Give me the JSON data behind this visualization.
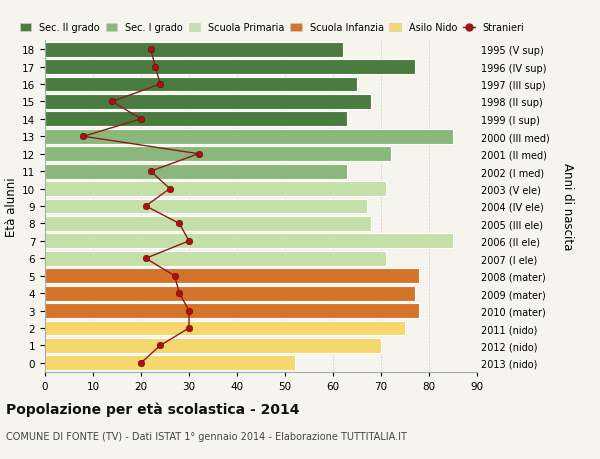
{
  "ages": [
    18,
    17,
    16,
    15,
    14,
    13,
    12,
    11,
    10,
    9,
    8,
    7,
    6,
    5,
    4,
    3,
    2,
    1,
    0
  ],
  "right_labels": [
    "1995 (V sup)",
    "1996 (IV sup)",
    "1997 (III sup)",
    "1998 (II sup)",
    "1999 (I sup)",
    "2000 (III med)",
    "2001 (II med)",
    "2002 (I med)",
    "2003 (V ele)",
    "2004 (IV ele)",
    "2005 (III ele)",
    "2006 (II ele)",
    "2007 (I ele)",
    "2008 (mater)",
    "2009 (mater)",
    "2010 (mater)",
    "2011 (nido)",
    "2012 (nido)",
    "2013 (nido)"
  ],
  "bar_values": [
    62,
    77,
    65,
    68,
    63,
    85,
    72,
    63,
    71,
    67,
    68,
    85,
    71,
    78,
    77,
    78,
    75,
    70,
    52
  ],
  "bar_colors": [
    "#4a7c3f",
    "#4a7c3f",
    "#4a7c3f",
    "#4a7c3f",
    "#4a7c3f",
    "#8ab87a",
    "#8ab87a",
    "#8ab87a",
    "#c5dfa8",
    "#c5dfa8",
    "#c5dfa8",
    "#c5dfa8",
    "#c5dfa8",
    "#d4742a",
    "#d4742a",
    "#d4742a",
    "#f5d76e",
    "#f5d76e",
    "#f5d76e"
  ],
  "stranieri_values": [
    22,
    23,
    24,
    14,
    20,
    8,
    32,
    22,
    26,
    21,
    28,
    30,
    21,
    27,
    28,
    30,
    30,
    24,
    20
  ],
  "legend_labels": [
    "Sec. II grado",
    "Sec. I grado",
    "Scuola Primaria",
    "Scuola Infanzia",
    "Asilo Nido",
    "Stranieri"
  ],
  "legend_colors": [
    "#4a7c3f",
    "#8ab87a",
    "#c5dfa8",
    "#d4742a",
    "#f5d76e",
    "#aa1111"
  ],
  "ylabel_left": "Età alunni",
  "ylabel_right": "Anni di nascita",
  "title": "Popolazione per età scolastica - 2014",
  "subtitle": "COMUNE DI FONTE (TV) - Dati ISTAT 1° gennaio 2014 - Elaborazione TUTTITALIA.IT",
  "xlim": [
    0,
    90
  ],
  "background_color": "#f5f5ee",
  "bar_edge_color": "#ffffff",
  "grid_color": "#cccccc"
}
